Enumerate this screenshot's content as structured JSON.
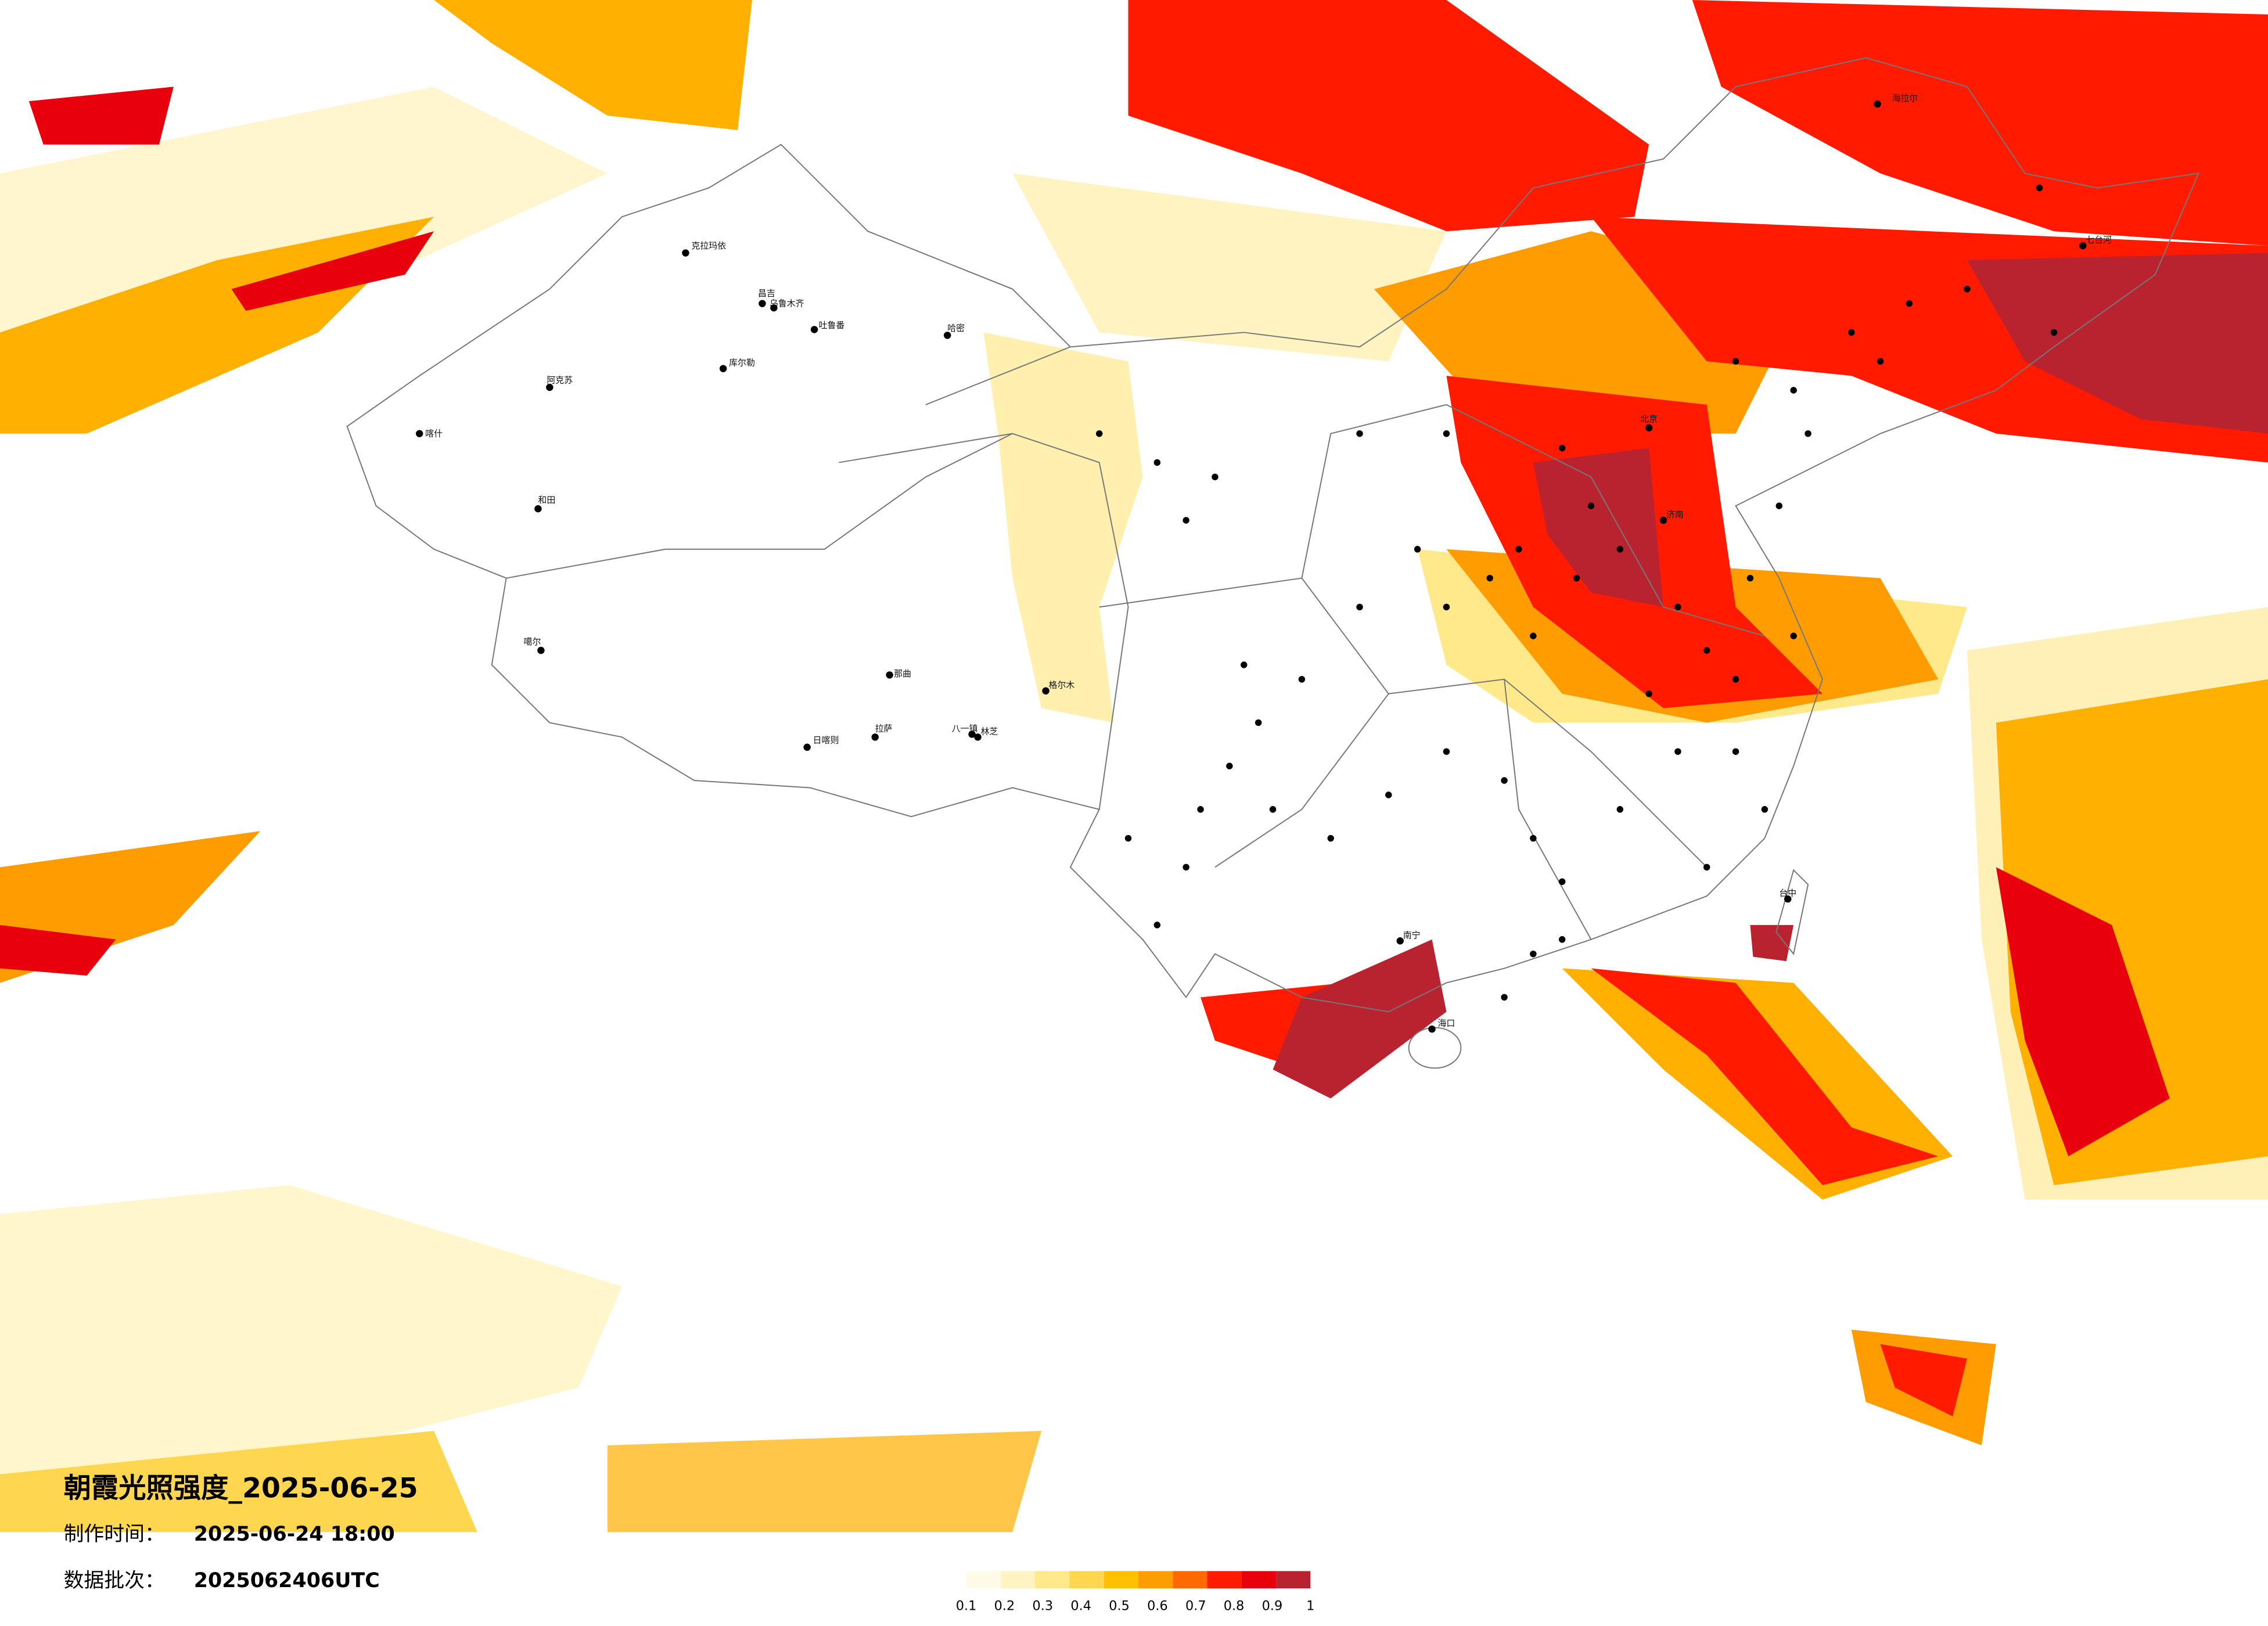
{
  "title": "朝霞光照强度_2025-06-25",
  "info": [
    {
      "label": "制作时间：",
      "value": "2025-06-24 18:00"
    },
    {
      "label": "数据批次：",
      "value": "2025062406UTC"
    }
  ],
  "legend": {
    "ticks": [
      0.1,
      0.2,
      0.3,
      0.4,
      0.5,
      0.6,
      0.7,
      0.8,
      0.9,
      1
    ],
    "colors": [
      "#fffbe6",
      "#fff3c2",
      "#ffe98a",
      "#ffd650",
      "#ffc000",
      "#ff9c00",
      "#ff6a00",
      "#ff1a00",
      "#e8000c",
      "#b8232f"
    ]
  },
  "cities": [
    "喀什",
    "和田",
    "阿克苏",
    "库尔勒",
    "哈密",
    "昌吉",
    "乌鲁木齐",
    "吐鲁番",
    "克拉玛依",
    "噶尔",
    "日喀则",
    "拉萨",
    "那曲",
    "八一镇",
    "林芝",
    "格尔木",
    "海口",
    "南宁",
    "北京",
    "济南",
    "海拉尔",
    "七台河",
    "台中"
  ]
}
